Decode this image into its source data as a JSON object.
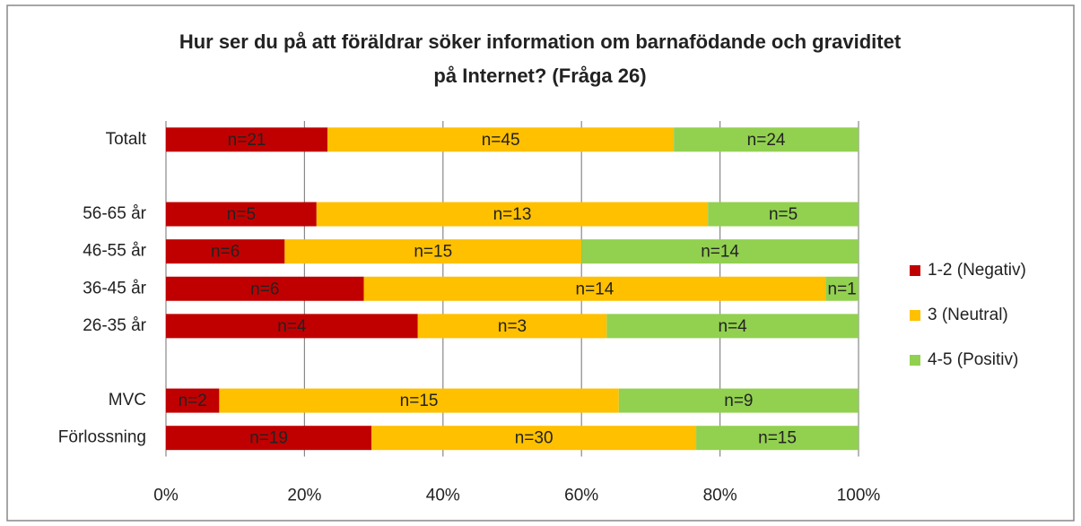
{
  "chart_data": {
    "type": "bar",
    "orientation": "horizontal",
    "stacking": "percent",
    "title": [
      "Hur ser du på att föräldrar söker information om barnafödande och graviditet",
      "på Internet? (Fråga 26)"
    ],
    "categories": [
      "Totalt",
      null,
      "56-65 år",
      "46-55 år",
      "36-45 år",
      "26-35 år",
      null,
      "MVC",
      "Förlossning"
    ],
    "series": [
      {
        "name": "1-2 (Negativ)",
        "color": "#c00000",
        "values": [
          21,
          null,
          5,
          6,
          6,
          4,
          null,
          2,
          19
        ],
        "value_labels": [
          "n=21",
          null,
          "n=5",
          "n=6",
          "n=6",
          "n=4",
          null,
          "n=2",
          "n=19"
        ]
      },
      {
        "name": "3 (Neutral)",
        "color": "#ffc000",
        "values": [
          45,
          null,
          13,
          15,
          14,
          3,
          null,
          15,
          30
        ],
        "value_labels": [
          "n=45",
          null,
          "n=13",
          "n=15",
          "n=14",
          "n=3",
          null,
          "n=15",
          "n=30"
        ]
      },
      {
        "name": "4-5 (Positiv)",
        "color": "#92d050",
        "values": [
          24,
          null,
          5,
          14,
          1,
          4,
          null,
          9,
          15
        ],
        "value_labels": [
          "n=24",
          null,
          "n=5",
          "n=14",
          "n=1",
          "n=4",
          null,
          "n=9",
          "n=15"
        ]
      }
    ],
    "xlim": [
      0,
      100
    ],
    "xticks": [
      {
        "value": 0,
        "label": "0%"
      },
      {
        "value": 20,
        "label": "20%"
      },
      {
        "value": 40,
        "label": "40%"
      },
      {
        "value": 60,
        "label": "60%"
      },
      {
        "value": 80,
        "label": "80%"
      },
      {
        "value": 100,
        "label": "100%"
      }
    ],
    "grid": true,
    "legend": "right"
  }
}
